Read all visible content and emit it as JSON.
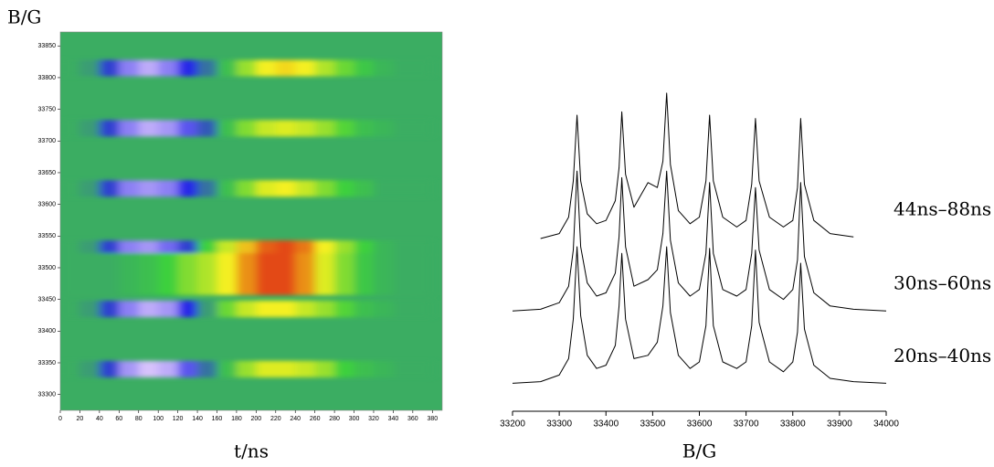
{
  "chart_data": [
    {
      "type": "heatmap",
      "xlabel": "t/ns",
      "ylabel": "B/G",
      "x": [
        10,
        30,
        50,
        70,
        90,
        110,
        130,
        150,
        170,
        190,
        210,
        230,
        250,
        270,
        290,
        310,
        330,
        350,
        370
      ],
      "y": [
        33815,
        33720,
        33625,
        33530,
        33490,
        33435,
        33340
      ],
      "z": [
        [
          0,
          -0.1,
          -0.5,
          -0.8,
          -0.9,
          -0.8,
          -0.6,
          -0.3,
          0.1,
          0.4,
          0.6,
          0.65,
          0.6,
          0.45,
          0.3,
          0.15,
          0.05,
          0,
          0
        ],
        [
          0,
          -0.1,
          -0.5,
          -0.8,
          -0.9,
          -0.85,
          -0.7,
          -0.4,
          0.1,
          0.35,
          0.5,
          0.55,
          0.5,
          0.4,
          0.25,
          0.1,
          0.05,
          0,
          0
        ],
        [
          0,
          -0.1,
          -0.5,
          -0.8,
          -0.85,
          -0.8,
          -0.6,
          -0.3,
          0.1,
          0.35,
          0.55,
          0.6,
          0.5,
          0.35,
          0.2,
          0.1,
          0,
          0,
          0
        ],
        [
          0,
          -0.1,
          -0.5,
          -0.8,
          -0.85,
          -0.75,
          -0.5,
          0.2,
          0.5,
          0.7,
          0.9,
          0.95,
          0.85,
          0.6,
          0.4,
          0.2,
          0.05,
          0,
          0
        ],
        [
          0,
          0,
          0,
          0.05,
          0.1,
          0.2,
          0.35,
          0.45,
          0.6,
          0.8,
          0.95,
          0.95,
          0.8,
          0.55,
          0.35,
          0.15,
          0.05,
          0,
          0
        ],
        [
          0,
          -0.1,
          -0.5,
          -0.8,
          -0.9,
          -0.85,
          -0.6,
          -0.1,
          0.3,
          0.5,
          0.6,
          0.6,
          0.5,
          0.4,
          0.25,
          0.1,
          0.05,
          0,
          0
        ],
        [
          0,
          -0.1,
          -0.5,
          -0.85,
          -0.95,
          -0.9,
          -0.7,
          -0.3,
          0.1,
          0.4,
          0.55,
          0.55,
          0.5,
          0.4,
          0.2,
          0.1,
          0.05,
          0,
          0
        ]
      ],
      "zlim": [
        -1,
        1
      ],
      "colormap": [
        "#f0d8ff",
        "#2828e8",
        "#3a8a88",
        "#3cd03c",
        "#f4f020",
        "#e03010"
      ],
      "xlim": [
        0,
        390
      ],
      "xticks": [
        0,
        20,
        40,
        60,
        80,
        100,
        120,
        140,
        160,
        180,
        200,
        220,
        240,
        260,
        280,
        300,
        320,
        340,
        360,
        380
      ],
      "ylim": [
        33275,
        33872
      ],
      "yticks": [
        33300,
        33350,
        33400,
        33450,
        33500,
        33550,
        33600,
        33650,
        33700,
        33750,
        33800,
        33850
      ]
    },
    {
      "type": "line",
      "xlabel": "B/G",
      "x": [
        33200,
        33260,
        33300,
        33320,
        33330,
        33338,
        33346,
        33360,
        33380,
        33400,
        33420,
        33428,
        33434,
        33442,
        33460,
        33490,
        33510,
        33522,
        33530,
        33538,
        33555,
        33580,
        33600,
        33614,
        33622,
        33630,
        33650,
        33680,
        33700,
        33712,
        33720,
        33728,
        33750,
        33780,
        33800,
        33810,
        33817,
        33825,
        33845,
        33880,
        33930,
        34000
      ],
      "series": [
        {
          "name": "44ns–88ns",
          "color": "#000000",
          "values": [
            null,
            5.25,
            5.4,
            5.9,
            7.0,
            9.0,
            7.0,
            6.0,
            5.7,
            5.8,
            6.4,
            7.4,
            9.1,
            7.2,
            6.2,
            6.95,
            6.8,
            7.6,
            9.67,
            7.5,
            6.1,
            5.7,
            5.9,
            7.0,
            9.0,
            7.0,
            5.9,
            5.6,
            5.8,
            6.9,
            8.9,
            7.0,
            5.9,
            5.6,
            5.8,
            6.8,
            8.9,
            6.9,
            5.8,
            5.4,
            5.3,
            null
          ]
        },
        {
          "name": "30ns–60ns",
          "color": "#000000",
          "values": [
            3.05,
            3.1,
            3.3,
            3.8,
            4.9,
            7.3,
            5.0,
            3.9,
            3.5,
            3.6,
            4.2,
            5.3,
            7.1,
            5.0,
            3.8,
            4.0,
            4.3,
            5.4,
            7.3,
            5.2,
            3.9,
            3.5,
            3.7,
            4.8,
            6.95,
            4.8,
            3.7,
            3.5,
            3.7,
            4.8,
            6.8,
            4.9,
            3.7,
            3.4,
            3.7,
            4.6,
            6.95,
            4.7,
            3.6,
            3.2,
            3.1,
            3.05
          ]
        },
        {
          "name": "20ns–40ns",
          "color": "#000000",
          "values": [
            0.85,
            0.9,
            1.1,
            1.6,
            2.8,
            5.0,
            2.9,
            1.7,
            1.3,
            1.4,
            2.0,
            3.2,
            4.8,
            2.8,
            1.6,
            1.7,
            2.1,
            3.2,
            5.0,
            3.0,
            1.7,
            1.3,
            1.5,
            2.6,
            4.95,
            2.6,
            1.5,
            1.3,
            1.5,
            2.6,
            4.9,
            2.7,
            1.5,
            1.2,
            1.5,
            2.4,
            4.5,
            2.5,
            1.4,
            1.0,
            0.9,
            0.85
          ]
        }
      ],
      "xlim": [
        33200,
        34000
      ],
      "xticks": [
        33200,
        33300,
        33400,
        33500,
        33600,
        33700,
        33800,
        33900,
        34000
      ],
      "ylim": [
        0,
        10
      ]
    }
  ]
}
